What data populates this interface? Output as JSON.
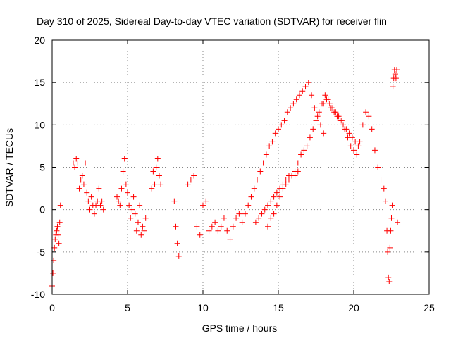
{
  "chart_data": {
    "type": "scatter",
    "title": "Day 310 of 2025, Sidereal Day-to-day VTEC variation (SDTVAR) for receiver flin",
    "xlabel": "GPS time / hours",
    "ylabel": "SDTVAR / TECUs",
    "xlim": [
      0,
      25
    ],
    "ylim": [
      -10,
      20
    ],
    "xticks": [
      0,
      5,
      10,
      15,
      20,
      25
    ],
    "xtick_labels": [
      "0",
      "5",
      "10",
      "15",
      "20",
      "25"
    ],
    "yticks": [
      -10,
      -5,
      0,
      5,
      10,
      15,
      20
    ],
    "ytick_labels": [
      "-10",
      "-5",
      "0",
      "5",
      "10",
      "15",
      "20"
    ],
    "grid": true,
    "marker": "+",
    "color": "#ff0000",
    "series": [
      {
        "name": "SDTVAR",
        "x": [
          0.0,
          0.05,
          0.1,
          0.15,
          0.2,
          0.25,
          0.3,
          0.35,
          0.4,
          0.45,
          0.5,
          0.55,
          1.4,
          1.5,
          1.6,
          1.7,
          1.8,
          1.9,
          2.0,
          2.1,
          2.2,
          2.3,
          2.4,
          2.5,
          2.6,
          2.7,
          2.8,
          2.9,
          3.0,
          3.1,
          3.2,
          3.3,
          3.4,
          4.3,
          4.4,
          4.5,
          4.6,
          4.7,
          4.8,
          4.9,
          5.0,
          5.1,
          5.2,
          5.3,
          5.4,
          5.5,
          5.6,
          5.7,
          5.8,
          5.9,
          6.0,
          6.1,
          6.2,
          6.6,
          6.7,
          6.8,
          6.9,
          7.0,
          7.1,
          7.2,
          8.1,
          8.2,
          8.3,
          8.4,
          9.0,
          9.2,
          9.4,
          9.6,
          9.8,
          10.0,
          10.2,
          10.4,
          10.6,
          10.8,
          11.0,
          11.2,
          11.4,
          11.6,
          11.8,
          12.0,
          12.2,
          12.4,
          12.6,
          12.8,
          13.0,
          13.2,
          13.4,
          13.6,
          13.8,
          14.0,
          14.2,
          14.4,
          14.6,
          14.8,
          15.0,
          15.2,
          15.4,
          15.6,
          15.8,
          16.0,
          16.2,
          16.4,
          16.6,
          16.8,
          17.0,
          17.2,
          17.4,
          17.6,
          17.8,
          18.0,
          14.3,
          14.5,
          14.7,
          14.9,
          15.1,
          15.3,
          15.5,
          15.7,
          15.9,
          16.1,
          16.3,
          16.5,
          16.7,
          16.9,
          17.1,
          17.3,
          17.5,
          17.7,
          17.9,
          18.1,
          18.3,
          18.5,
          18.7,
          18.9,
          19.1,
          19.3,
          19.5,
          19.7,
          19.9,
          20.1,
          20.3,
          13.5,
          13.7,
          13.9,
          14.1,
          14.3,
          14.5,
          14.7,
          14.9,
          15.1,
          15.3,
          15.5,
          15.7,
          15.9,
          16.1,
          16.3,
          18.0,
          18.2,
          18.4,
          18.6,
          18.8,
          19.0,
          19.2,
          19.4,
          19.6,
          19.8,
          20.0,
          20.2,
          20.4,
          20.6,
          20.8,
          21.0,
          21.2,
          21.4,
          21.6,
          21.8,
          22.0,
          22.1,
          22.2,
          22.25,
          22.3,
          22.35,
          22.4,
          22.45,
          22.5,
          22.55,
          22.6,
          22.65,
          22.7,
          22.75,
          22.8,
          22.85,
          22.9
        ],
        "y": [
          -9.0,
          -7.5,
          -6.0,
          -4.5,
          -3.5,
          -3.0,
          -2.5,
          -2.0,
          -3.0,
          -4.0,
          -1.5,
          0.5,
          5.5,
          5.0,
          6.0,
          5.5,
          2.5,
          3.5,
          4.0,
          3.0,
          5.5,
          2.0,
          1.0,
          0.0,
          1.5,
          0.5,
          -0.5,
          0.5,
          1.0,
          2.5,
          0.5,
          1.0,
          0.0,
          1.5,
          1.0,
          0.5,
          2.5,
          4.5,
          6.0,
          3.0,
          2.0,
          0.5,
          -1.0,
          0.0,
          1.5,
          -0.5,
          -2.5,
          -1.5,
          0.5,
          -3.0,
          -2.0,
          -2.5,
          -1.0,
          2.5,
          4.5,
          3.0,
          5.0,
          6.0,
          4.0,
          3.0,
          1.0,
          -2.0,
          -4.0,
          -5.5,
          3.0,
          3.5,
          4.0,
          -2.0,
          -3.0,
          0.5,
          1.0,
          -2.5,
          -2.0,
          -1.5,
          -2.5,
          -2.0,
          -1.0,
          -2.5,
          -3.5,
          -2.0,
          -1.0,
          -0.5,
          -1.5,
          -0.5,
          0.5,
          1.5,
          2.5,
          3.5,
          4.5,
          5.5,
          6.5,
          7.5,
          8.0,
          9.0,
          9.5,
          10.0,
          10.5,
          11.5,
          12.0,
          12.5,
          13.0,
          13.5,
          14.0,
          14.5,
          15.0,
          13.5,
          12.0,
          11.0,
          10.0,
          9.0,
          -2.0,
          -1.0,
          -0.5,
          0.5,
          1.5,
          2.5,
          3.0,
          3.5,
          4.0,
          4.5,
          5.5,
          6.5,
          7.0,
          7.5,
          8.5,
          9.5,
          10.5,
          11.5,
          12.5,
          13.5,
          13.0,
          12.0,
          11.5,
          11.0,
          10.5,
          10.0,
          9.5,
          9.0,
          8.5,
          8.0,
          7.5,
          -1.5,
          -1.0,
          -0.5,
          0.0,
          0.5,
          1.0,
          1.5,
          2.0,
          2.5,
          3.0,
          3.5,
          4.0,
          4.0,
          4.0,
          4.5,
          12.5,
          13.0,
          12.5,
          12.0,
          11.5,
          11.0,
          10.5,
          9.5,
          8.5,
          7.5,
          7.0,
          6.5,
          8.0,
          10.0,
          11.5,
          11.0,
          9.5,
          7.0,
          5.0,
          3.5,
          2.5,
          1.0,
          -2.5,
          -5.0,
          -8.0,
          -8.5,
          -4.5,
          -2.5,
          -1.0,
          0.5,
          14.5,
          15.5,
          16.5,
          16.0,
          15.5,
          16.5,
          -1.5
        ]
      }
    ]
  }
}
